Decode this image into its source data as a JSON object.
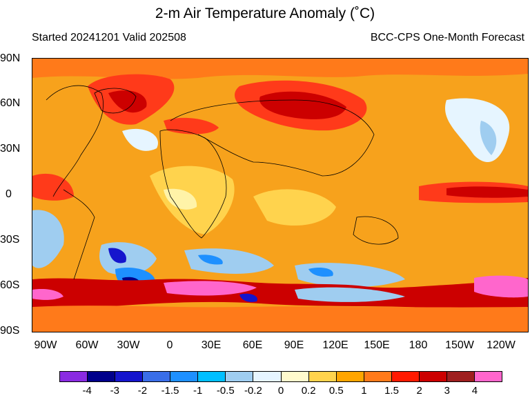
{
  "title": "2-m Air Temperature Anomaly (˚C)",
  "subtitle_left": "Started 20241201  Valid 202508",
  "subtitle_right": "BCC-CPS One-Month Forecast",
  "lat_labels": [
    "90N",
    "60N",
    "30N",
    "0",
    "30S",
    "60S",
    "90S"
  ],
  "lon_labels": [
    "90W",
    "60W",
    "30W",
    "0",
    "30E",
    "60E",
    "90E",
    "120E",
    "150E",
    "180",
    "150W",
    "120W"
  ],
  "colorbar": {
    "colors": [
      "#8a2be2",
      "#00008b",
      "#1515cd",
      "#3a6ee8",
      "#1e90ff",
      "#00bfff",
      "#9fcdf0",
      "#e6f5ff",
      "#fffacd",
      "#ffd34d",
      "#ffa500",
      "#ff7a1a",
      "#ff1a00",
      "#cc0000",
      "#9e1f1f",
      "#ff66cc"
    ],
    "labels": [
      "-4",
      "-3",
      "-2",
      "-1.5",
      "-1",
      "-0.5",
      "-0.2",
      "0",
      "0.2",
      "0.5",
      "1",
      "1.5",
      "2",
      "3",
      "4"
    ]
  },
  "map": {
    "background_color": "#f7a21c",
    "region_colors": {
      "strong_warm": "#cc0000",
      "warm": "#ff3a1a",
      "moderate_warm": "#ff7a1a",
      "mild_warm": "#ffd34d",
      "slight_warm": "#fff3a8",
      "neutral": "#e6f5ff",
      "cool": "#9fcdf0",
      "cold": "#1e90ff",
      "very_cold": "#1515cd",
      "extreme_warm": "#ff66cc",
      "dark_red": "#9e1f1f"
    }
  }
}
